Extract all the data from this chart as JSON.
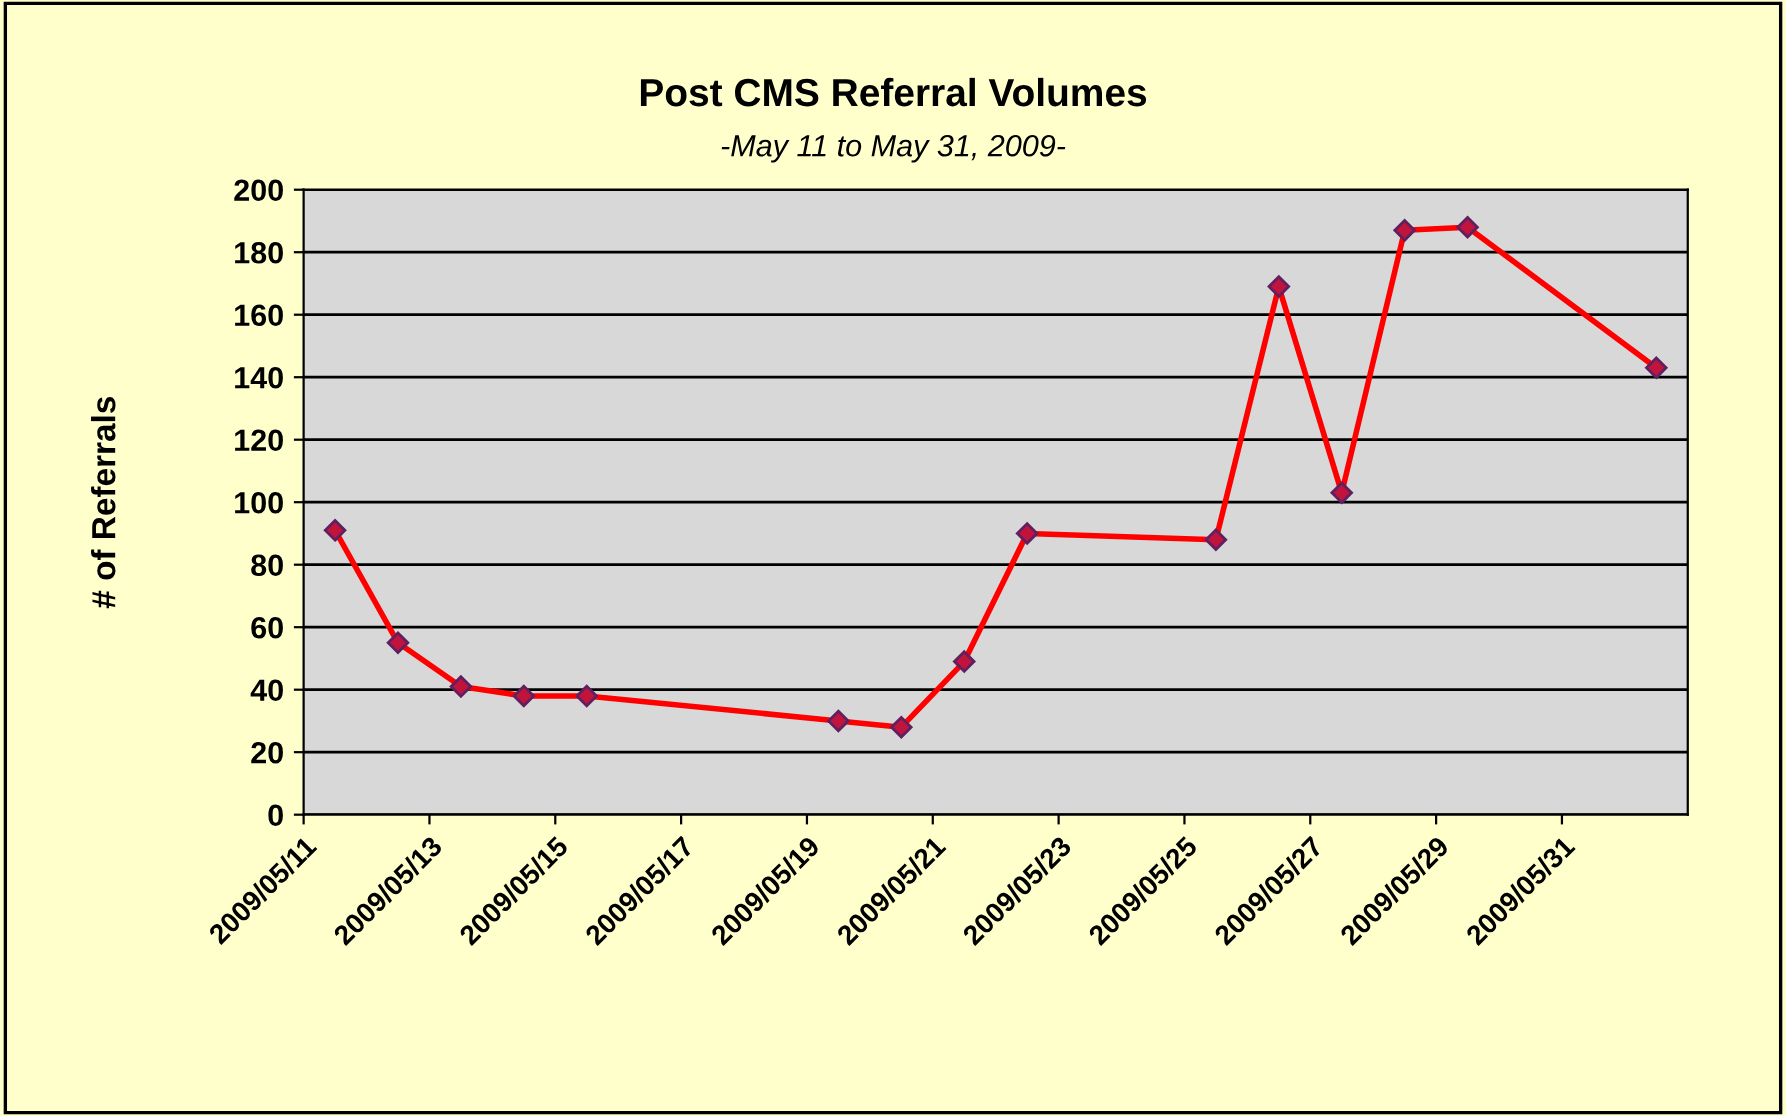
{
  "chart_data": {
    "type": "line",
    "title": "Post CMS Referral Volumes",
    "subtitle": "-May 11 to May 31, 2009-",
    "ylabel": "# of Referrals",
    "x": [
      "2009-05-11T12:00",
      "2009-05-12T12:00",
      "2009-05-13T12:00",
      "2009-05-14T12:00",
      "2009-05-15T12:00",
      "2009-05-19T12:00",
      "2009-05-20T12:00",
      "2009-05-21T12:00",
      "2009-05-22T12:00",
      "2009-05-25T12:00",
      "2009-05-26T12:00",
      "2009-05-27T12:00",
      "2009-05-28T12:00",
      "2009-05-29T12:00",
      "2009-06-01T12:00"
    ],
    "series": [
      {
        "color": "#ff0000",
        "values": [
          91,
          55,
          41,
          38,
          38,
          30,
          28,
          49,
          90,
          88,
          169,
          103,
          187,
          188,
          143
        ]
      }
    ],
    "marker": "diamond",
    "line_style": "solid",
    "grid": "y",
    "legend": false,
    "xlim": [
      "2009-05-11",
      "2009-06-02"
    ],
    "xticks": [
      {
        "value": "2009-05-11",
        "label": "2009/05/11"
      },
      {
        "value": "2009-05-13",
        "label": "2009/05/13"
      },
      {
        "value": "2009-05-15",
        "label": "2009/05/15"
      },
      {
        "value": "2009-05-17",
        "label": "2009/05/17"
      },
      {
        "value": "2009-05-19",
        "label": "2009/05/19"
      },
      {
        "value": "2009-05-21",
        "label": "2009/05/21"
      },
      {
        "value": "2009-05-23",
        "label": "2009/05/23"
      },
      {
        "value": "2009-05-25",
        "label": "2009/05/25"
      },
      {
        "value": "2009-05-27",
        "label": "2009/05/27"
      },
      {
        "value": "2009-05-29",
        "label": "2009/05/29"
      },
      {
        "value": "2009-05-31",
        "label": "2009/05/31"
      }
    ],
    "ylim": [
      0,
      200
    ],
    "yticks": [
      0,
      20,
      40,
      60,
      80,
      100,
      120,
      140,
      160,
      180,
      200
    ]
  }
}
